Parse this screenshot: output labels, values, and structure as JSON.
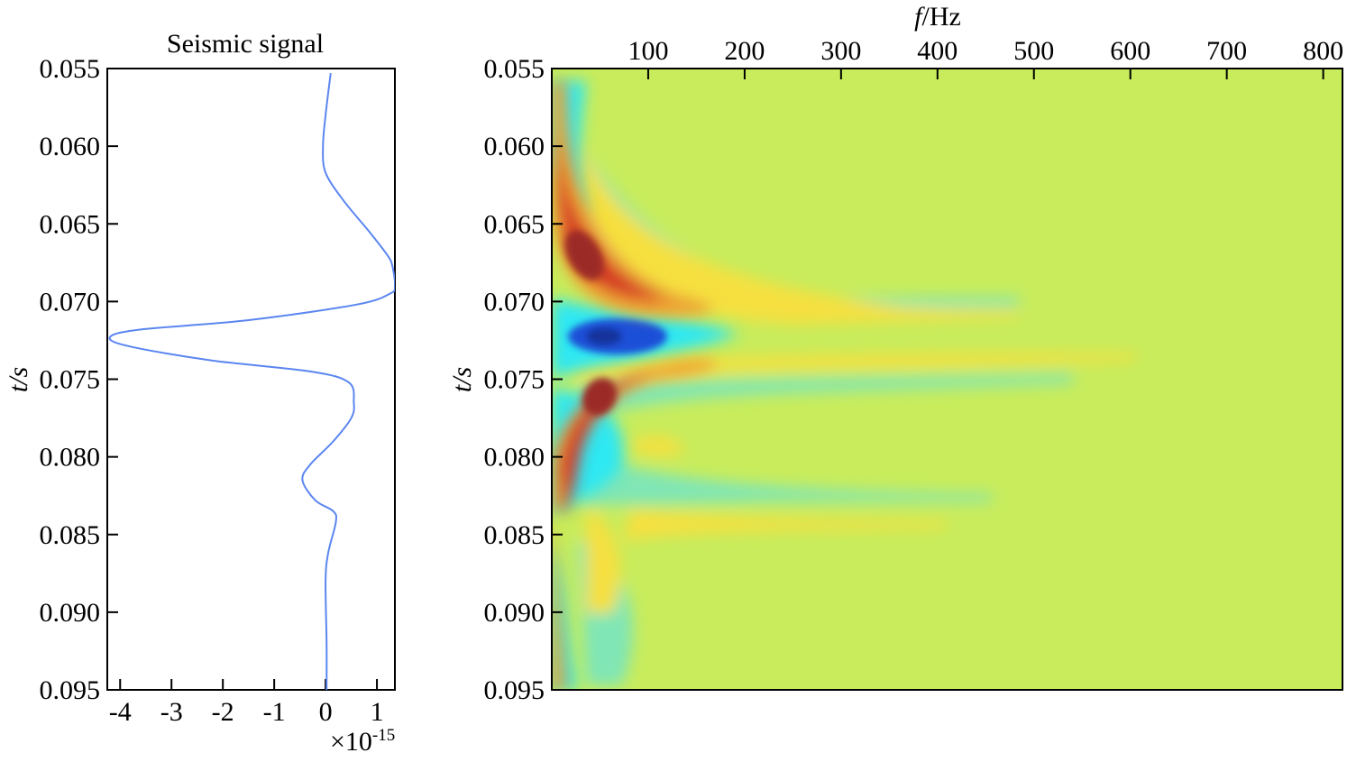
{
  "colors": {
    "trace": "#5b86f0",
    "background_field": "#c8ec5c",
    "blob_red": "#d43525",
    "blob_darkred": "#9b2a28",
    "blob_orange": "#f0a030",
    "blob_yellow": "#f5e040",
    "blob_cyan": "#2ee8f2",
    "blob_teal": "#80e6b5",
    "blob_blue": "#1d4fd8",
    "blob_deepblue": "#13339a"
  },
  "chart_data": [
    {
      "type": "line",
      "title": "Seismic signal",
      "xlabel": "",
      "ylabel": "t/s",
      "xlim": [
        -4.25,
        1.35
      ],
      "ylim": [
        0.055,
        0.095
      ],
      "y_inverted": true,
      "x_ticks": [
        "-4",
        "-3",
        "-2",
        "-1",
        "0",
        "1"
      ],
      "y_ticks": [
        "0.055",
        "0.060",
        "0.065",
        "0.070",
        "0.075",
        "0.080",
        "0.085",
        "0.090",
        "0.095"
      ],
      "x_exponent_label": "×10",
      "x_exponent_power": "-15",
      "series": [
        {
          "x": [
            0.1,
            0.0,
            -0.05,
            0.0,
            0.35,
            0.85,
            1.2,
            1.3,
            1.35,
            1.25,
            0.6,
            -1.5,
            -3.6,
            -4.2,
            -3.8,
            -2.2,
            -0.3,
            0.45,
            0.55,
            0.5,
            0.15,
            -0.3,
            -0.45,
            -0.2,
            0.15,
            0.2,
            0.05,
            0.0,
            0.02,
            0.02
          ],
          "y": [
            0.0553,
            0.058,
            0.06,
            0.0617,
            0.0635,
            0.0655,
            0.067,
            0.0677,
            0.069,
            0.0695,
            0.0702,
            0.0712,
            0.0718,
            0.0723,
            0.0729,
            0.0738,
            0.0745,
            0.0752,
            0.0765,
            0.0775,
            0.079,
            0.0805,
            0.0815,
            0.0828,
            0.0835,
            0.0842,
            0.0862,
            0.088,
            0.092,
            0.095
          ]
        }
      ]
    },
    {
      "type": "heatmap",
      "title": "",
      "xlabel": "f/Hz",
      "ylabel": "t/s",
      "xlim": [
        0,
        820
      ],
      "ylim": [
        0.055,
        0.095
      ],
      "y_inverted": true,
      "x_axis_position": "top",
      "x_ticks": [
        "100",
        "200",
        "300",
        "400",
        "500",
        "600",
        "700",
        "800"
      ],
      "y_ticks": [
        "0.055",
        "0.060",
        "0.065",
        "0.070",
        "0.075",
        "0.080",
        "0.085",
        "0.090",
        "0.095"
      ],
      "features": [
        {
          "f": 35,
          "t": 0.067,
          "value": "max"
        },
        {
          "f": 45,
          "t": 0.0765,
          "value": "max"
        },
        {
          "f": 40,
          "t": 0.0722,
          "value": "min"
        }
      ]
    }
  ]
}
